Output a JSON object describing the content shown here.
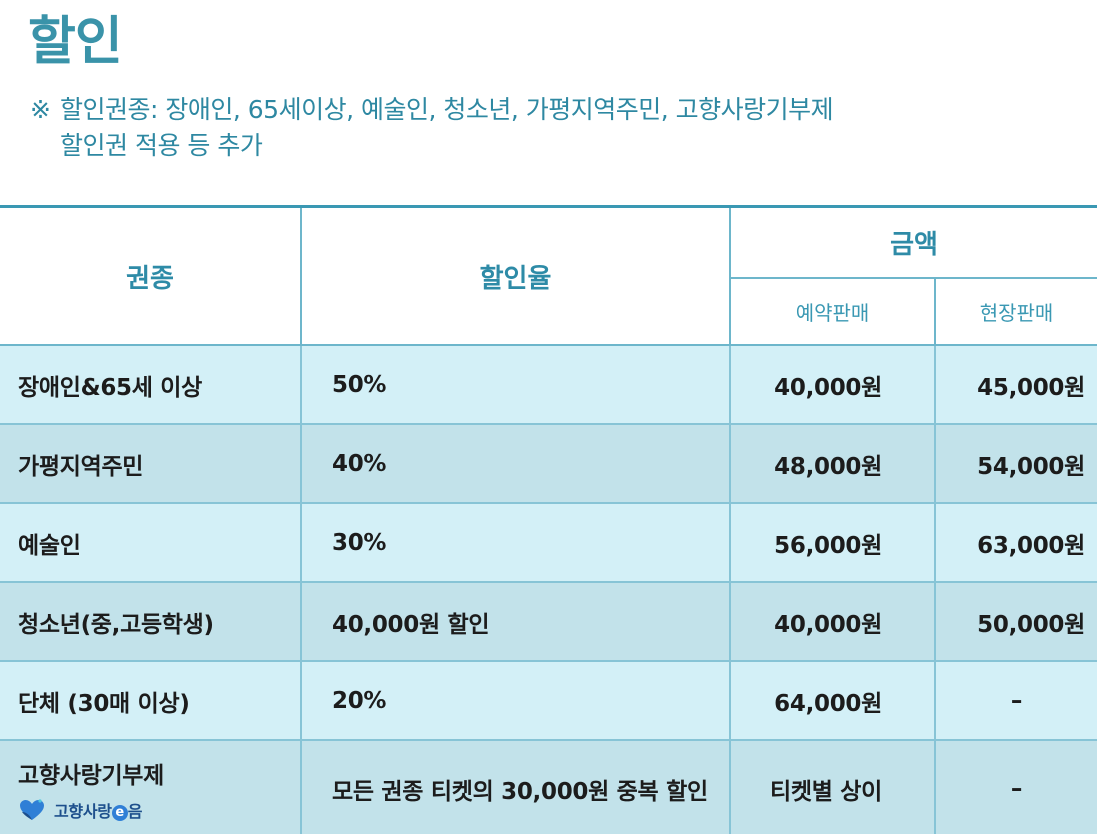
{
  "title": "할인",
  "note": {
    "mark": "※",
    "line1": "할인권종: 장애인, 65세이상, 예술인, 청소년, 가평지역주민, 고향사랑기부제",
    "line2": "할인권 적용 등 추가"
  },
  "table": {
    "headers": {
      "type": "권종",
      "rate": "할인율",
      "amount": "금액",
      "presale": "예약판매",
      "onsite": "현장판매"
    },
    "rows": [
      {
        "type": "장애인&65세 이상",
        "rate": "50%",
        "presale": "40,000원",
        "onsite": "45,000원"
      },
      {
        "type": "가평지역주민",
        "rate": "40%",
        "presale": "48,000원",
        "onsite": "54,000원"
      },
      {
        "type": "예술인",
        "rate": "30%",
        "presale": "56,000원",
        "onsite": "63,000원"
      },
      {
        "type": "청소년(중,고등학생)",
        "rate": "40,000원 할인",
        "presale": "40,000원",
        "onsite": "50,000원"
      },
      {
        "type": "단체 (30매 이상)",
        "rate": "20%",
        "presale": "64,000원",
        "onsite": "–"
      },
      {
        "type": "고향사랑기부제",
        "rate": "모든 권종 티켓의 30,000원 중복 할인",
        "presale": "티켓별 상이",
        "onsite": "–"
      }
    ],
    "logo": {
      "text_before": "고향사랑",
      "badge": "e",
      "text_after": "음"
    }
  },
  "colors": {
    "accent": "#3a93a9",
    "row_light": "#d3f0f7",
    "row_dark": "#c2e2ea"
  }
}
